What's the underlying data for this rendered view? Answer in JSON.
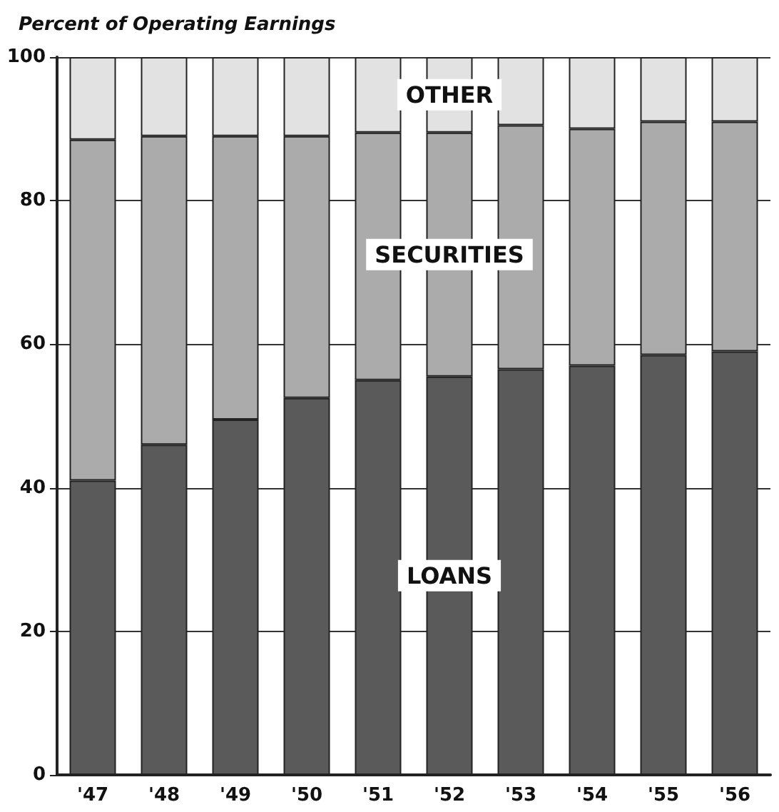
{
  "chart_data": {
    "type": "bar",
    "ylabel": "Percent of Operating Earnings",
    "stacked": true,
    "categories": [
      "'47",
      "'48",
      "'49",
      "'50",
      "'51",
      "'52",
      "'53",
      "'54",
      "'55",
      "'56"
    ],
    "series": [
      {
        "name": "LOANS",
        "color": "#5a5a5a",
        "values": [
          41,
          46,
          49.5,
          52.5,
          55,
          55.5,
          56.5,
          57,
          58.5,
          59
        ]
      },
      {
        "name": "SECURITIES",
        "color": "#ababab",
        "values": [
          47.5,
          43,
          39.5,
          36.5,
          34.5,
          34,
          34,
          33,
          32.5,
          32
        ]
      },
      {
        "name": "OTHER",
        "color": "#e2e2e2",
        "values": [
          11.5,
          11,
          11,
          11,
          10.5,
          10.5,
          9.5,
          10,
          9,
          9
        ]
      }
    ],
    "ylim": [
      0,
      100
    ],
    "yticks": [
      0,
      20,
      40,
      60,
      80,
      100
    ],
    "grid": "y",
    "legend": false
  }
}
